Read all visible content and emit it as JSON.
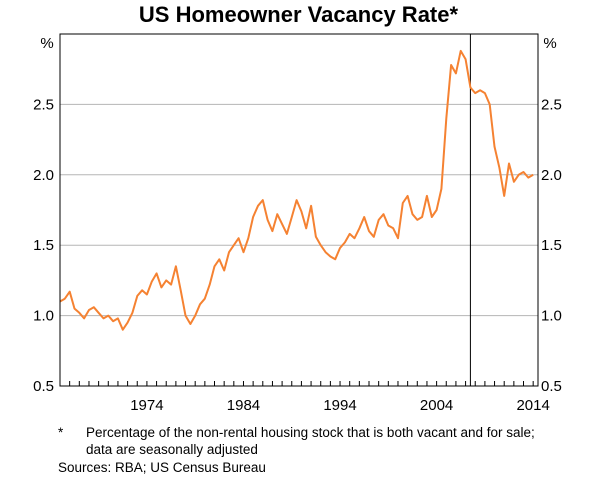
{
  "page": {
    "title": "US Homeowner Vacancy Rate*",
    "footnote_mark": "*",
    "footnote_text": "Percentage of the non-rental housing stock that is both vacant and for sale; data are seasonally adjusted",
    "sources": "Sources:  RBA; US Census Bureau"
  },
  "chart_data": {
    "type": "line",
    "title": "US Homeowner Vacancy Rate*",
    "y_unit_left": "%",
    "y_unit_right": "%",
    "ylim": [
      0.5,
      3.0
    ],
    "y_ticks": [
      0.5,
      1.0,
      1.5,
      2.0,
      2.5
    ],
    "y_tick_labels": [
      "0.5",
      "1.0",
      "1.5",
      "2.0",
      "2.5"
    ],
    "xlim": [
      1965.0,
      2014.5
    ],
    "x_tick_labels": [
      "1974",
      "1984",
      "1994",
      "2004",
      "2014"
    ],
    "x_tick_positions": [
      1974,
      1984,
      1994,
      2004,
      2014
    ],
    "grid": "horizontal",
    "vertical_marker": 2007.5,
    "line_color": "#f58232",
    "marker_color": "#000000",
    "series": [
      {
        "x": [
          1965.0,
          1965.5,
          1966.0,
          1966.5,
          1967.0,
          1967.5,
          1968.0,
          1968.5,
          1969.0,
          1969.5,
          1970.0,
          1970.5,
          1971.0,
          1971.5,
          1972.0,
          1972.5,
          1973.0,
          1973.5,
          1974.0,
          1974.5,
          1975.0,
          1975.5,
          1976.0,
          1976.5,
          1977.0,
          1977.5,
          1978.0,
          1978.5,
          1979.0,
          1979.5,
          1980.0,
          1980.5,
          1981.0,
          1981.5,
          1982.0,
          1982.5,
          1983.0,
          1983.5,
          1984.0,
          1984.5,
          1985.0,
          1985.5,
          1986.0,
          1986.5,
          1987.0,
          1987.5,
          1988.0,
          1988.5,
          1989.0,
          1989.5,
          1990.0,
          1990.5,
          1991.0,
          1991.5,
          1992.0,
          1992.5,
          1993.0,
          1993.5,
          1994.0,
          1994.5,
          1995.0,
          1995.5,
          1996.0,
          1996.5,
          1997.0,
          1997.5,
          1998.0,
          1998.5,
          1999.0,
          1999.5,
          2000.0,
          2000.5,
          2001.0,
          2001.5,
          2002.0,
          2002.5,
          2003.0,
          2003.5,
          2004.0,
          2004.5,
          2005.0,
          2005.5,
          2006.0,
          2006.5,
          2007.0,
          2007.5,
          2008.0,
          2008.5,
          2009.0,
          2009.5,
          2010.0,
          2010.5,
          2011.0,
          2011.5,
          2012.0,
          2012.5,
          2013.0,
          2013.5,
          2014.0
        ],
        "y": [
          1.1,
          1.12,
          1.17,
          1.05,
          1.02,
          0.98,
          1.04,
          1.06,
          1.02,
          0.98,
          1.0,
          0.96,
          0.98,
          0.9,
          0.95,
          1.02,
          1.14,
          1.18,
          1.15,
          1.24,
          1.3,
          1.2,
          1.25,
          1.22,
          1.35,
          1.18,
          1.0,
          0.94,
          1.0,
          1.08,
          1.12,
          1.22,
          1.35,
          1.4,
          1.32,
          1.45,
          1.5,
          1.55,
          1.45,
          1.55,
          1.7,
          1.78,
          1.82,
          1.68,
          1.6,
          1.72,
          1.65,
          1.58,
          1.7,
          1.82,
          1.74,
          1.62,
          1.78,
          1.56,
          1.5,
          1.45,
          1.42,
          1.4,
          1.48,
          1.52,
          1.58,
          1.55,
          1.62,
          1.7,
          1.6,
          1.56,
          1.68,
          1.72,
          1.64,
          1.62,
          1.55,
          1.8,
          1.85,
          1.72,
          1.68,
          1.7,
          1.85,
          1.7,
          1.75,
          1.9,
          2.4,
          2.78,
          2.72,
          2.88,
          2.82,
          2.62,
          2.58,
          2.6,
          2.58,
          2.5,
          2.2,
          2.05,
          1.85,
          2.08,
          1.95,
          2.0,
          2.02,
          1.98,
          2.0
        ]
      }
    ]
  }
}
